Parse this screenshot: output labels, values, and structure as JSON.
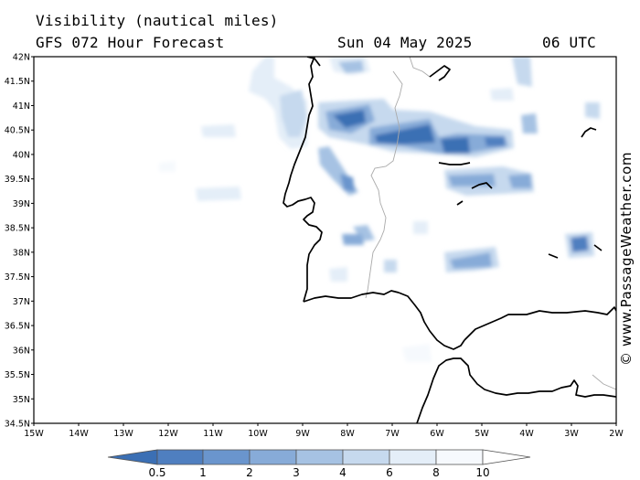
{
  "header": {
    "title": "Visibility (nautical miles)",
    "subtitle": "GFS 072 Hour Forecast",
    "date": "Sun 04 May 2025",
    "time": "06 UTC"
  },
  "credit": "© www.PassageWeather.com",
  "map": {
    "lat_range": [
      34.5,
      42
    ],
    "lon_range": [
      -15,
      -2
    ],
    "lat_labels": [
      "42N",
      "41.5N",
      "41N",
      "40.5N",
      "40N",
      "39.5N",
      "39N",
      "38.5N",
      "38N",
      "37.5N",
      "37N",
      "36.5N",
      "36N",
      "35.5N",
      "35N",
      "34.5N"
    ],
    "lon_labels": [
      "15W",
      "14W",
      "13W",
      "12W",
      "11W",
      "10W",
      "9W",
      "8W",
      "7W",
      "6W",
      "5W",
      "4W",
      "3W",
      "2W"
    ],
    "land_color": "#ffffff",
    "coast_color": "#000000",
    "border_color": "#aaaaaa"
  },
  "colorbar": {
    "labels": [
      "0.5",
      "1",
      "2",
      "3",
      "4",
      "6",
      "8",
      "10"
    ],
    "colors": [
      "#3b6fb4",
      "#4f7fc0",
      "#6a95cd",
      "#87abd8",
      "#a6c2e3",
      "#c6d9ee",
      "#e4eef8",
      "#f6f9fd"
    ]
  }
}
